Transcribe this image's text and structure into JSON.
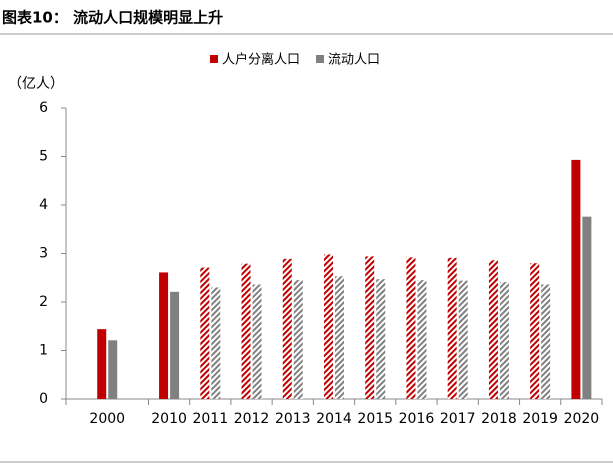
{
  "chart_data": {
    "type": "bar",
    "title": "图表10：  流动人口规模明显上升",
    "y_label": "（亿人）",
    "categories": [
      "2000",
      null,
      "2010",
      "2011",
      "2012",
      "2013",
      "2014",
      "2015",
      "2016",
      "2017",
      "2018",
      "2019",
      "2020"
    ],
    "hatched": [
      false,
      false,
      false,
      true,
      true,
      true,
      true,
      true,
      true,
      true,
      true,
      true,
      false
    ],
    "series": [
      {
        "name": "人户分离人口",
        "color": "#c00000",
        "values": [
          1.44,
          null,
          2.61,
          2.71,
          2.79,
          2.89,
          2.98,
          2.94,
          2.92,
          2.91,
          2.86,
          2.8,
          4.93
        ]
      },
      {
        "name": "流动人口",
        "color": "#808080",
        "values": [
          1.21,
          null,
          2.21,
          2.3,
          2.36,
          2.45,
          2.53,
          2.47,
          2.45,
          2.44,
          2.41,
          2.36,
          3.76
        ]
      }
    ],
    "ylim": [
      0,
      6
    ],
    "yticks": [
      0,
      1,
      2,
      3,
      4,
      5,
      6
    ],
    "legend": "top"
  }
}
